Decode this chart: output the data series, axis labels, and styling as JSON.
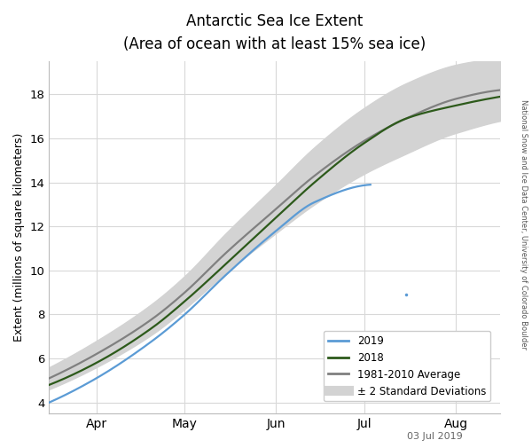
{
  "title_line1": "Antarctic Sea Ice Extent",
  "title_line2": "(Area of ocean with at least 15% sea ice)",
  "ylabel": "Extent (millions of square kilometers)",
  "watermark": "03 Jul 2019",
  "side_text": "National Snow and Ice Data Center, University of Colorado Boulder",
  "xlim_day": [
    75,
    228
  ],
  "ylim": [
    3.5,
    19.5
  ],
  "yticks": [
    4,
    6,
    8,
    10,
    12,
    14,
    16,
    18
  ],
  "month_tick_days": [
    91,
    121,
    152,
    182,
    213
  ],
  "month_tick_labels": [
    "Apr",
    "May",
    "Jun",
    "Jul",
    "Aug"
  ],
  "bg_color": "#ffffff",
  "grid_color": "#d8d8d8",
  "color_2019": "#5b9bd5",
  "color_2018": "#2d5a1b",
  "color_avg": "#808080",
  "color_std_fill": "#d3d3d3",
  "avg_linewidth": 1.6,
  "line_2019_linewidth": 1.6,
  "line_2018_linewidth": 1.6,
  "last_day_2019": 184,
  "dot_2019_day": 196,
  "dot_2019_val": 8.9,
  "avg_keypoints_day": [
    75,
    91,
    110,
    121,
    135,
    152,
    165,
    182,
    196,
    213,
    228
  ],
  "avg_keypoints_val": [
    5.1,
    6.2,
    7.8,
    9.0,
    10.8,
    12.8,
    14.3,
    15.9,
    16.9,
    17.8,
    18.2
  ],
  "std_keypoints_day": [
    75,
    91,
    110,
    121,
    135,
    152,
    165,
    182,
    196,
    213,
    228
  ],
  "std_keypoints_val": [
    0.5,
    0.6,
    0.7,
    0.75,
    0.9,
    1.1,
    1.3,
    1.5,
    1.6,
    1.55,
    1.4
  ],
  "line2018_keypoints_day": [
    75,
    91,
    110,
    121,
    135,
    152,
    165,
    182,
    196,
    213,
    228
  ],
  "line2018_keypoints_val": [
    4.8,
    5.8,
    7.4,
    8.6,
    10.3,
    12.4,
    14.0,
    15.8,
    16.9,
    17.5,
    17.9
  ],
  "line2019_keypoints_day": [
    75,
    91,
    110,
    121,
    135,
    152,
    165,
    184
  ],
  "line2019_keypoints_val": [
    4.0,
    5.1,
    6.8,
    8.0,
    9.8,
    11.8,
    13.1,
    13.9
  ]
}
